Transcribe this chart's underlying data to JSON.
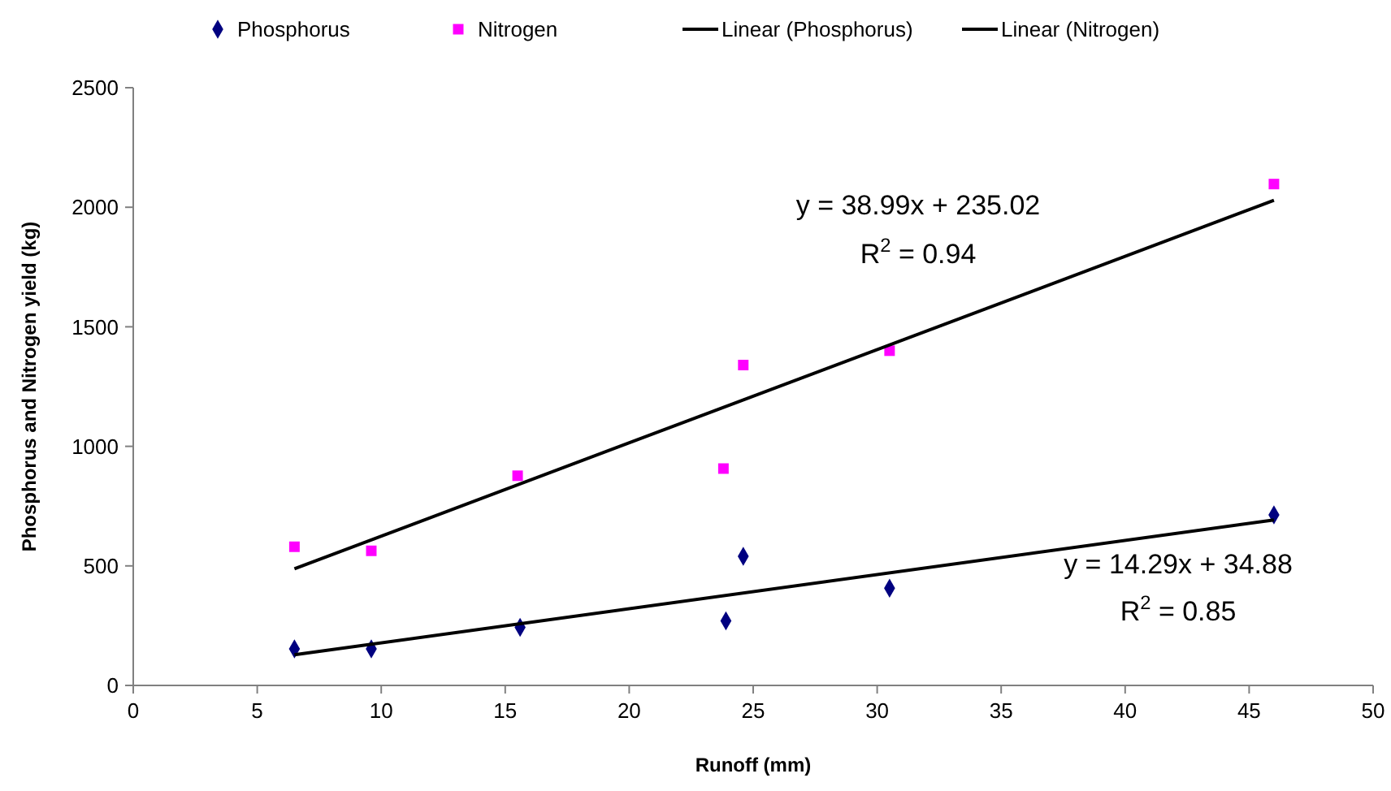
{
  "chart_data": {
    "type": "scatter",
    "xlabel": "Runoff (mm)",
    "ylabel": "Phosphorus and Nitrogen yield (kg)",
    "xlim": [
      0,
      50
    ],
    "xticks": [
      0,
      5,
      10,
      15,
      20,
      25,
      30,
      35,
      40,
      45,
      50
    ],
    "ylim": [
      0,
      2500
    ],
    "yticks": [
      0,
      500,
      1000,
      1500,
      2000,
      2500
    ],
    "grid": false,
    "legend": "top",
    "series": [
      {
        "name": "Phosphorus",
        "color": "#000080",
        "marker": "diamond",
        "x": [
          6.5,
          9.6,
          15.6,
          23.9,
          24.6,
          30.5,
          46.0
        ],
        "values": [
          153,
          153,
          243,
          270,
          540,
          407,
          713
        ]
      },
      {
        "name": "Nitrogen",
        "color": "#ff00ff",
        "marker": "square",
        "x": [
          6.5,
          9.6,
          15.5,
          23.8,
          24.6,
          30.5,
          46.0
        ],
        "values": [
          580,
          563,
          877,
          907,
          1340,
          1400,
          2097
        ]
      },
      {
        "name": "Linear (Phosphorus)",
        "type": "line",
        "color": "#000000",
        "marker": "none",
        "x": [
          6.5,
          46.0
        ],
        "values": [
          128,
          692
        ]
      },
      {
        "name": "Linear (Nitrogen)",
        "type": "line",
        "color": "#000000",
        "marker": "none",
        "x": [
          6.5,
          46.0
        ],
        "values": [
          488,
          2029
        ]
      }
    ],
    "annotations": [
      "y = 38.99x + 235.02",
      "R$^{2}$ = 0.94",
      "y = 14.29x + 34.88",
      "R$^{2}$ = 0.85"
    ]
  }
}
